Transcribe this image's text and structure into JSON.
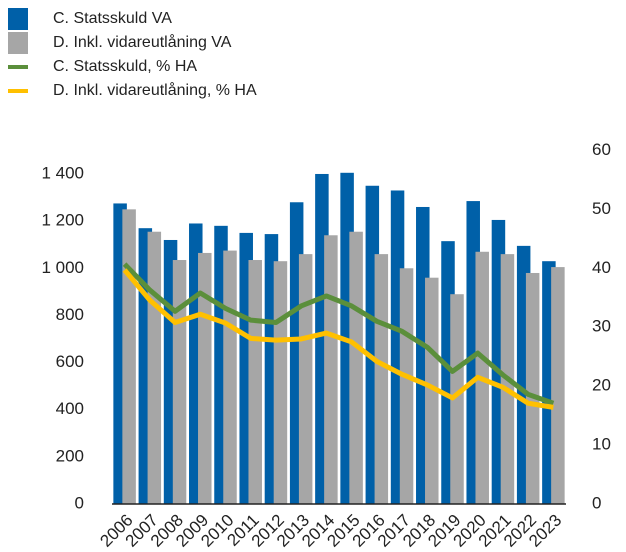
{
  "chart_data": {
    "type": "bar",
    "categories": [
      "2006",
      "2007",
      "2008",
      "2009",
      "2010",
      "2011",
      "2012",
      "2013",
      "2014",
      "2015",
      "2016",
      "2017",
      "2018",
      "2019",
      "2020",
      "2021",
      "2022",
      "2023"
    ],
    "series": [
      {
        "name": "C. Statsskuld VA",
        "type": "bar",
        "color": "#0060a8",
        "values": [
          1275,
          1170,
          1120,
          1190,
          1180,
          1150,
          1145,
          1280,
          1400,
          1405,
          1350,
          1330,
          1260,
          1115,
          1285,
          1205,
          1095,
          1030
        ]
      },
      {
        "name": "D. Inkl. vidareutlåning VA",
        "type": "bar",
        "color": "#a6a6a6",
        "values": [
          1250,
          1155,
          1035,
          1065,
          1075,
          1035,
          1030,
          1060,
          1140,
          1155,
          1060,
          1000,
          960,
          890,
          1070,
          1060,
          980,
          1005
        ]
      },
      {
        "name": "C. Statsskuld, % HA",
        "type": "line",
        "axis": "y2",
        "color": "#5b8f3b",
        "values": [
          40.7,
          36.3,
          32.7,
          35.8,
          33.2,
          31.2,
          30.8,
          33.6,
          35.3,
          33.6,
          31.0,
          29.3,
          26.6,
          22.5,
          25.6,
          21.9,
          18.6,
          17.1
        ]
      },
      {
        "name": "D. Inkl. vidareutlåning, % HA",
        "type": "line",
        "axis": "y2",
        "color": "#ffc000",
        "values": [
          39.7,
          34.6,
          30.8,
          32.2,
          30.7,
          28.1,
          27.8,
          28.0,
          29.0,
          27.5,
          24.2,
          22.0,
          20.2,
          18.0,
          21.5,
          19.8,
          17.1,
          16.4
        ]
      }
    ],
    "ylim": [
      0,
      1500
    ],
    "yticks": [
      0,
      200,
      400,
      600,
      800,
      {
        "value": 1000,
        "label": "1 000"
      },
      {
        "value": 1200,
        "label": "1 200"
      },
      {
        "value": 1400,
        "label": "1 400"
      }
    ],
    "y2lim": [
      0,
      60
    ],
    "y2ticks": [
      0,
      10,
      20,
      30,
      40,
      50,
      60
    ],
    "legend": "top-left"
  }
}
